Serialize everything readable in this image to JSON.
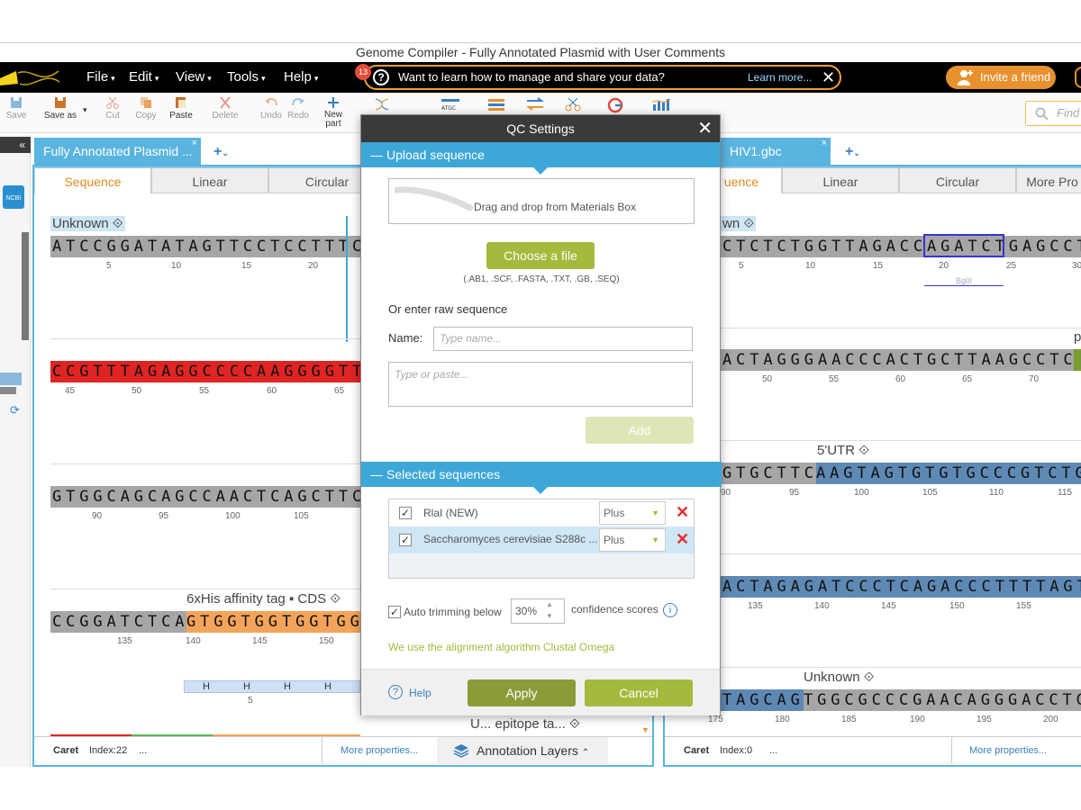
{
  "window_title": "Genome Compiler - Fully Annotated Plasmid with User Comments",
  "menu": [
    {
      "label": "File"
    },
    {
      "label": "Edit"
    },
    {
      "label": "View"
    },
    {
      "label": "Tools"
    },
    {
      "label": "Help"
    }
  ],
  "promo": {
    "badge": "13",
    "text": "Want to learn how to manage and share your data?",
    "link": "Learn more..."
  },
  "invite_label": "Invite a friend",
  "toolbar": {
    "save": "Save",
    "save_as": "Save as",
    "cut": "Cut",
    "copy": "Copy",
    "paste": "Paste",
    "delete": "Delete",
    "undo": "Undo",
    "redo": "Redo",
    "new_part_1": "New",
    "new_part_2": "part",
    "find_placeholder": "Find i"
  },
  "left_doc": {
    "tab_title": "Fully Annotated Plasmid ...",
    "subtabs": [
      "Sequence",
      "Linear",
      "Circular"
    ],
    "rows": [
      {
        "label": "Unknown ⟐",
        "seq": "ATCCGGATATAGTTCCTCCTTTC",
        "ticks": [
          "5",
          "10",
          "15",
          "20"
        ]
      },
      {
        "seq": "CCGTTTAGAGGCCCCAAGGGGTT",
        "ticks": [
          "45",
          "50",
          "55",
          "60",
          "65"
        ]
      },
      {
        "seq": "GTGGCAGCAGCCAACTCAGCTTC",
        "ticks": [
          "90",
          "95",
          "100",
          "105"
        ]
      },
      {
        "label": "6xHis affinity tag ▪ CDS ⟐",
        "seq_a": "CCGGATCTCA",
        "seq_b": "GTGGTGGTGGTGG",
        "ticks": [
          "135",
          "140",
          "145",
          "150"
        ]
      }
    ],
    "his_letters": [
      "H",
      "H",
      "H",
      "H"
    ],
    "his_tick": "5",
    "bottom_label": "U... epitope ta... ⟐",
    "status": {
      "caret": "Caret",
      "index": "Index:22",
      "dots": "...",
      "more": "More properties...",
      "layers": "Annotation Layers"
    }
  },
  "right_doc": {
    "tab_title": "HIV1.gbc",
    "subtabs": [
      "uence",
      "Linear",
      "Circular",
      "More Pro"
    ],
    "rows": [
      {
        "label": "wn ⟐",
        "seq": "CTCTCTGGTTAGACCAGATCTGAGCCT",
        "ticks": [
          "5",
          "10",
          "15",
          "20",
          "25",
          "30"
        ],
        "site": "BglII"
      },
      {
        "seq": "ACTAGGGAACCCACTGCTTAAGCCTCA",
        "ticks": [
          "50",
          "55",
          "60",
          "65",
          "70"
        ],
        "edge_label": "p"
      },
      {
        "label": "5'UTR ⟐",
        "seq_a": "GTGCTTC",
        "seq_b": "AAGTAGTGTGTGCCCGTCTG",
        "ticks": [
          "90",
          "95",
          "100",
          "105",
          "110",
          "115"
        ]
      },
      {
        "seq": "ACTAGAGATCCCTCAGACCCTTTTAGT",
        "ticks": [
          "135",
          "140",
          "145",
          "150",
          "155"
        ]
      },
      {
        "label": "Unknown ⟐",
        "seq_a": "TAGCAG",
        "seq_b": "TGGCGCCCGAACAGGGACCTG",
        "ticks": [
          "175",
          "180",
          "185",
          "190",
          "195",
          "200"
        ]
      }
    ],
    "status": {
      "caret": "Caret",
      "index": "Index:0",
      "dots": "...",
      "more": "More properties..."
    }
  },
  "dialog": {
    "title": "QC Settings",
    "upload_section": "Upload sequence",
    "drop_text": "Drag and drop from Materials Box",
    "choose_file": "Choose a file",
    "formats": "(.AB1, .SCF, .FASTA, .TXT, .GB, .SEQ)",
    "raw_heading": "Or enter raw sequence",
    "name_label": "Name:",
    "name_placeholder": "Type name...",
    "seq_placeholder": "Type or paste...",
    "add": "Add",
    "selected_section": "Selected sequences",
    "sequences": [
      {
        "name": "RlaI (NEW)",
        "strand": "Plus",
        "checked": "✓"
      },
      {
        "name": "Saccharomyces cerevisiae S288c ...",
        "strand": "Plus",
        "checked": "✓"
      }
    ],
    "auto_trim_label": "Auto trimming below",
    "trim_value": "30%",
    "confidence": "confidence scores",
    "algorithm_note": "We use the alignment algorithm Clustal Omega",
    "help": "Help",
    "apply": "Apply",
    "cancel": "Cancel"
  },
  "colors": {
    "accent_blue": "#5ab4e0",
    "dialog_section": "#3da7d8",
    "green_button": "#a3ba3c",
    "apply_button": "#8a9c38",
    "orange": "#e8912f",
    "seq_gray": "#999999",
    "seq_red": "#e02424",
    "seq_orange": "#f4a45a",
    "seq_blue": "#5f89b5"
  }
}
